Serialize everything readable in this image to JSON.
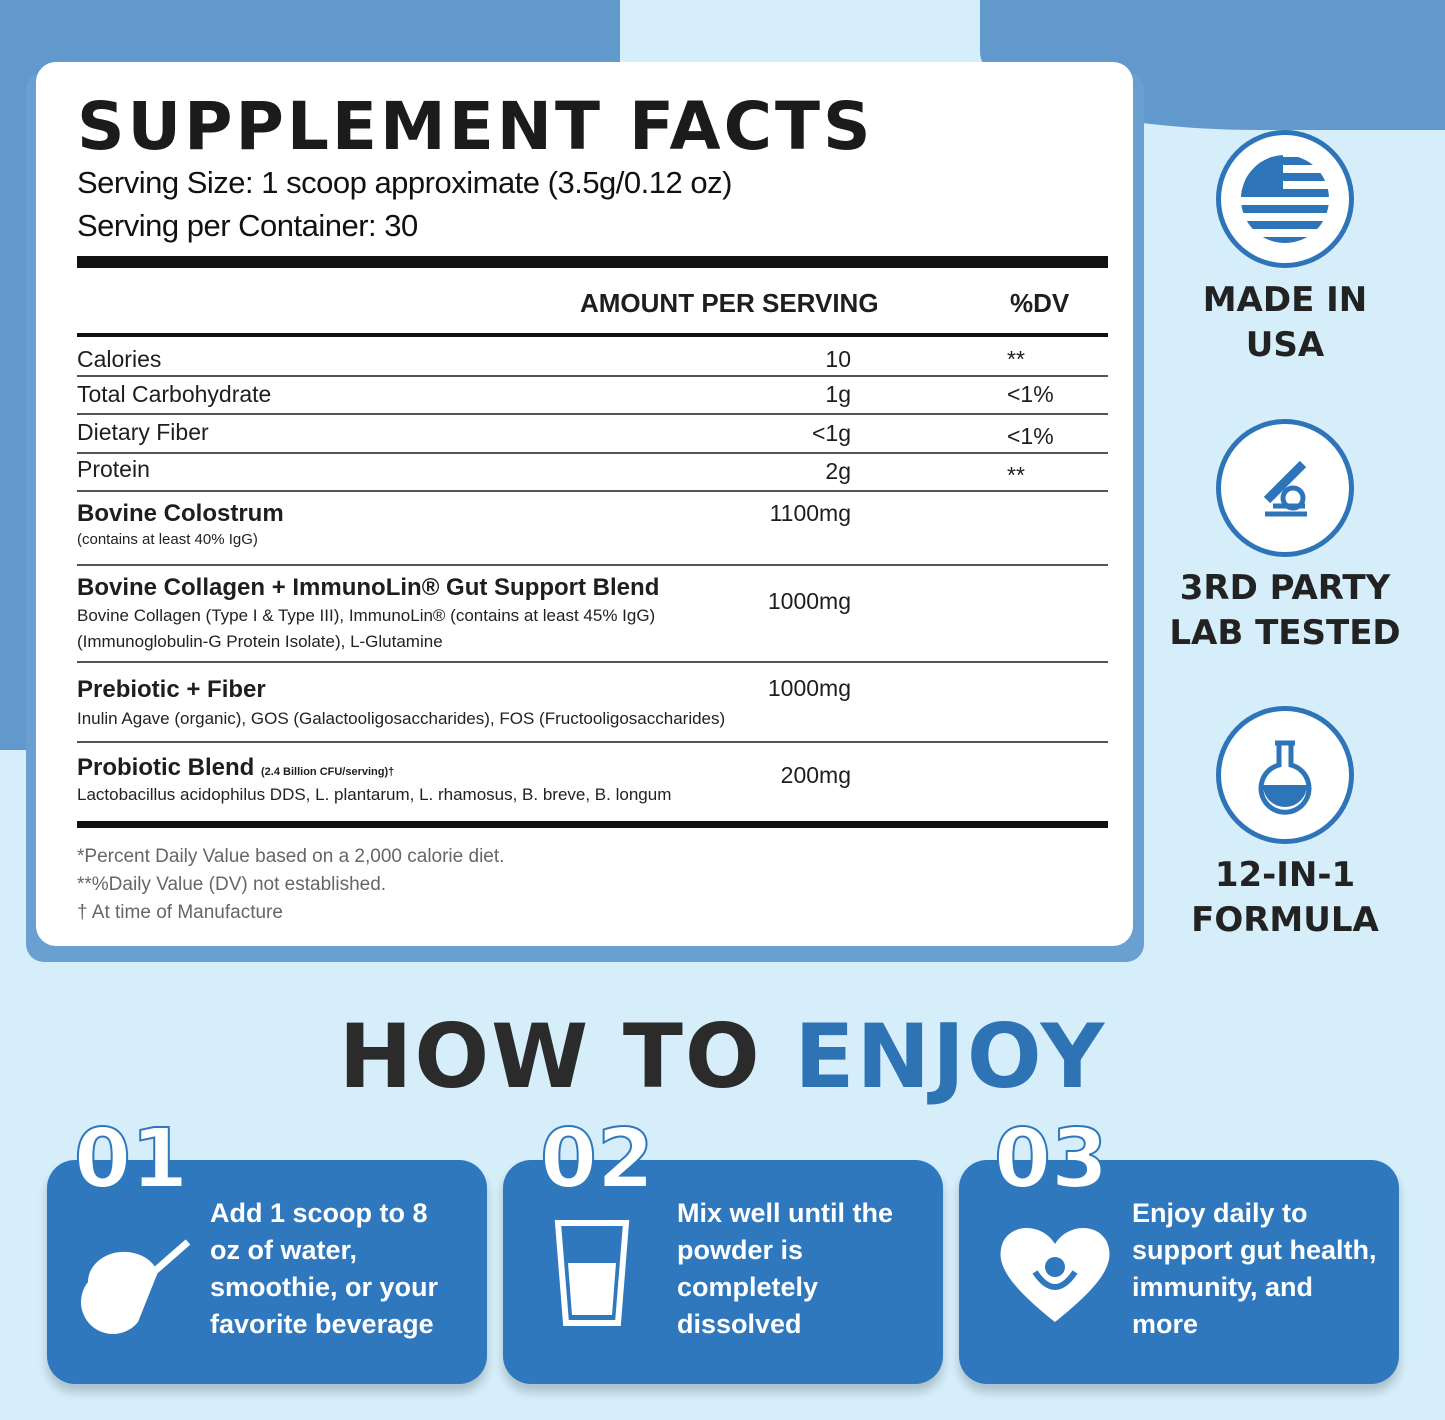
{
  "facts": {
    "title": "SUPPLEMENT FACTS",
    "serving_size": "Serving Size: 1 scoop approximate (3.5g/0.12 oz)",
    "servings_per_container": "Serving per Container: 30",
    "header_amount": "AMOUNT PER SERVING",
    "header_dv": "%DV",
    "nutrients": [
      {
        "name": "Calories",
        "amount": "10",
        "dv": "**"
      },
      {
        "name": "Total Carbohydrate",
        "amount": "1g",
        "dv": "<1%"
      },
      {
        "name": "Dietary Fiber",
        "amount": "<1g",
        "dv": "<1%"
      },
      {
        "name": "Protein",
        "amount": "2g",
        "dv": "**"
      }
    ],
    "blends": [
      {
        "name": "Bovine Colostrum",
        "note": "",
        "desc": "(contains at least 40% IgG)",
        "desc2": "",
        "amount": "1100mg"
      },
      {
        "name": "Bovine Collagen + ImmunoLin® Gut Support Blend",
        "note": "",
        "desc": "Bovine Collagen (Type I & Type III), ImmunoLin® (contains at least 45% IgG)",
        "desc2": "(Immunoglobulin-G Protein Isolate), L-Glutamine",
        "amount": "1000mg"
      },
      {
        "name": "Prebiotic + Fiber",
        "note": "",
        "desc": "Inulin Agave (organic), GOS (Galactooligosaccharides), FOS (Fructooligosaccharides)",
        "desc2": "",
        "amount": "1000mg"
      },
      {
        "name": "Probiotic Blend",
        "note": "(2.4 Billion CFU/serving)†",
        "desc": "Lactobacillus acidophilus DDS, L. plantarum, L. rhamosus, B. breve, B. longum",
        "desc2": "",
        "amount": "200mg"
      }
    ],
    "footnotes": [
      "*Percent Daily Value based on a 2,000 calorie diet.",
      "**%Daily Value (DV) not established.",
      "† At time of Manufacture"
    ]
  },
  "badges": [
    {
      "icon": "usa-flag-icon",
      "line1": "MADE IN",
      "line2": "USA"
    },
    {
      "icon": "microscope-icon",
      "line1": "3RD PARTY",
      "line2": "LAB TESTED"
    },
    {
      "icon": "flask-icon",
      "line1": "12-IN-1",
      "line2": "FORMULA"
    }
  ],
  "how": {
    "title_a": "HOW TO",
    "title_b": "ENJOY",
    "steps": [
      {
        "num": "01",
        "icon": "scoop-icon",
        "text": "Add 1 scoop to 8 oz of water, smoothie, or your favorite beverage"
      },
      {
        "num": "02",
        "icon": "glass-icon",
        "text": "Mix well until the powder is completely dissolved"
      },
      {
        "num": "03",
        "icon": "heart-gut-icon",
        "text": "Enjoy daily to support gut health, immunity, and more"
      }
    ]
  },
  "colors": {
    "background": "#d5eefa",
    "accent": "#2e74b5",
    "card": "#2f78bd",
    "blob": "#6199cd"
  }
}
